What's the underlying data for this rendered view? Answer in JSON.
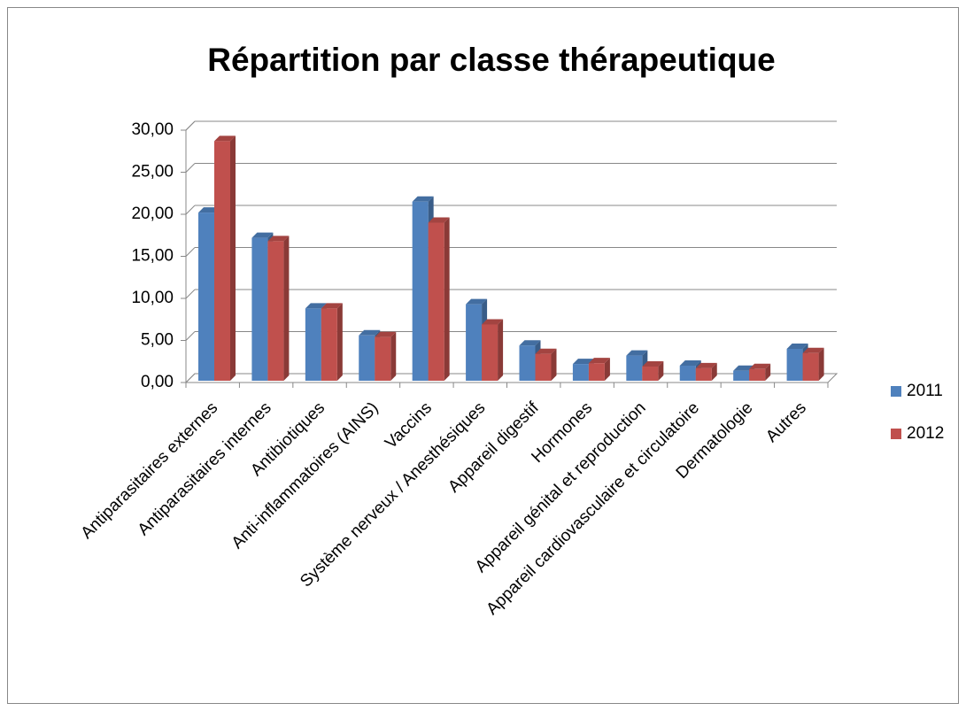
{
  "chart_data": {
    "type": "bar3d",
    "title": "Répartition par classe thérapeutique",
    "categories": [
      "Antiparasitaires externes",
      "Antiparasitaires internes",
      "Antibiotiques",
      "Anti-inflammatoires (AINS)",
      "Vaccins",
      "Système nerveux / Anesthésiques",
      "Appareil digestif",
      "Hormones",
      "Appareil génital et reproduction",
      "Appareil cardiovasculaire et circulatoire",
      "Dermatologie",
      "Autres"
    ],
    "series": [
      {
        "name": "2011",
        "color": "#4f81bd",
        "values": [
          20.2,
          17.2,
          8.8,
          5.6,
          21.5,
          9.3,
          4.4,
          2.2,
          3.2,
          2.0,
          1.4,
          4.0
        ]
      },
      {
        "name": "2012",
        "color": "#c0504d",
        "values": [
          28.7,
          16.8,
          8.8,
          5.4,
          19.0,
          6.9,
          3.4,
          2.3,
          1.9,
          1.7,
          1.6,
          3.5
        ]
      }
    ],
    "ylim": [
      0,
      30
    ],
    "yticks": [
      {
        "value": 0,
        "label": "0,00"
      },
      {
        "value": 5,
        "label": "5,00"
      },
      {
        "value": 10,
        "label": "10,00"
      },
      {
        "value": 15,
        "label": "15,00"
      },
      {
        "value": 20,
        "label": "20,00"
      },
      {
        "value": 25,
        "label": "25,00"
      },
      {
        "value": 30,
        "label": "30,00"
      }
    ],
    "grid": true,
    "legend": "right"
  }
}
